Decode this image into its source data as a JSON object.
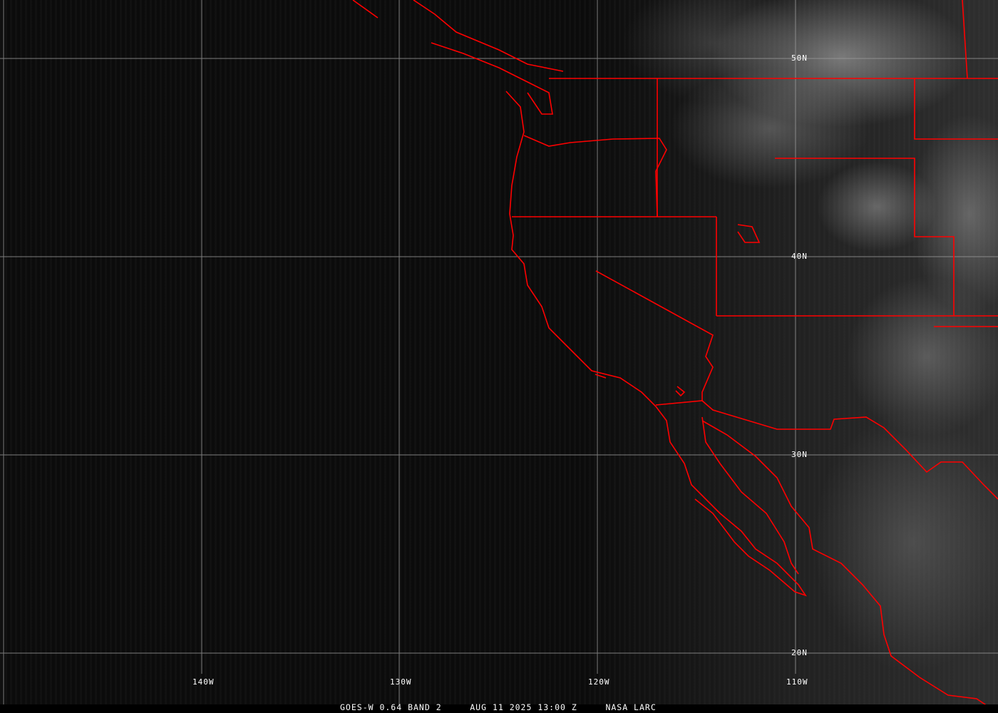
{
  "grid_labels": {
    "lat": [
      "50N",
      "40N",
      "30N",
      "20N"
    ],
    "lon": [
      "140W",
      "130W",
      "120W",
      "110W"
    ]
  },
  "caption": {
    "satellite": "GOES-W 0.64 BAND 2",
    "datetime": "AUG 11 2025 13:00 Z",
    "credit": "NASA LARC"
  },
  "colors": {
    "boundaries": "#ff0000",
    "grid": "#9a9a9a"
  }
}
